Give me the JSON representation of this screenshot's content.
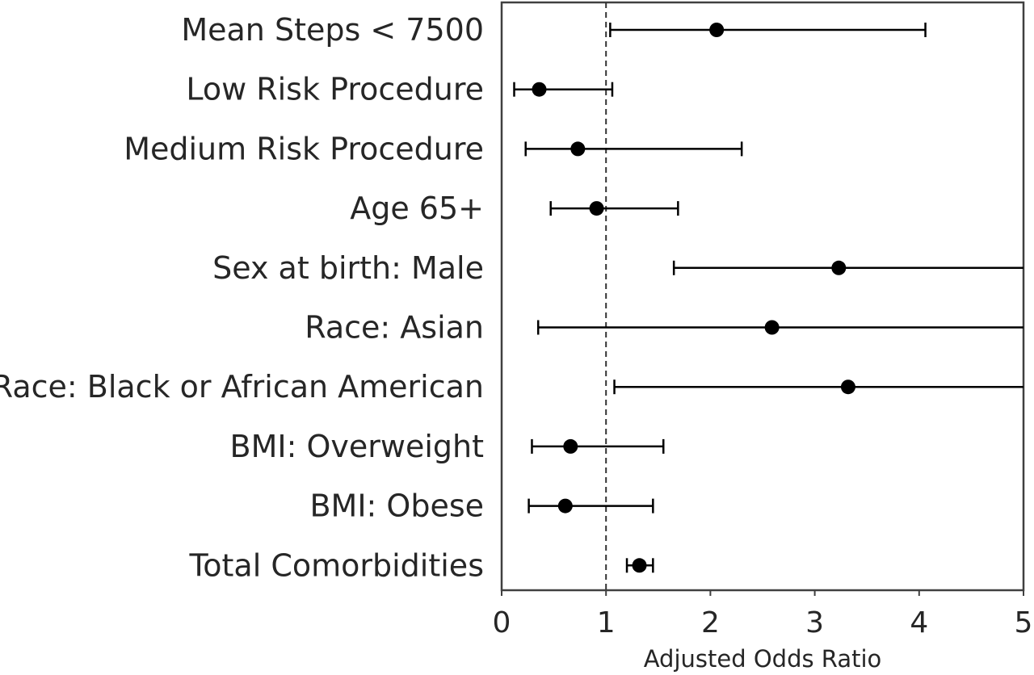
{
  "chart_data": {
    "type": "scatter",
    "subtype": "forest-plot",
    "title": "",
    "xlabel": "Adjusted Odds Ratio",
    "ylabel": "",
    "xlim": [
      0,
      5
    ],
    "xticks": [
      "0",
      "1",
      "2",
      "3",
      "4",
      "5"
    ],
    "xtick_values": [
      0,
      1,
      2,
      3,
      4,
      5
    ],
    "reference_line": 1,
    "reference_line_style": "dashed",
    "grid": false,
    "legend": "none",
    "categories": [
      "Mean Steps < 7500",
      "Low Risk Procedure",
      "Medium Risk Procedure",
      "Age 65+",
      "Sex at birth: Male",
      "Race: Asian",
      "Race: Black or African American",
      "BMI: Overweight",
      "BMI: Obese",
      "Total Comorbidities"
    ],
    "estimate": [
      2.06,
      0.36,
      0.73,
      0.91,
      3.23,
      2.59,
      3.32,
      0.66,
      0.61,
      1.32
    ],
    "ci_lower": [
      1.04,
      0.12,
      0.23,
      0.47,
      1.65,
      0.35,
      1.08,
      0.29,
      0.26,
      1.2
    ],
    "ci_upper": [
      4.06,
      1.06,
      2.3,
      1.69,
      5.0,
      5.0,
      5.0,
      1.55,
      1.45,
      1.45
    ],
    "colors": {
      "marker": "#000000",
      "line": "#000000",
      "text": "#262626",
      "axis": "#404040"
    }
  }
}
